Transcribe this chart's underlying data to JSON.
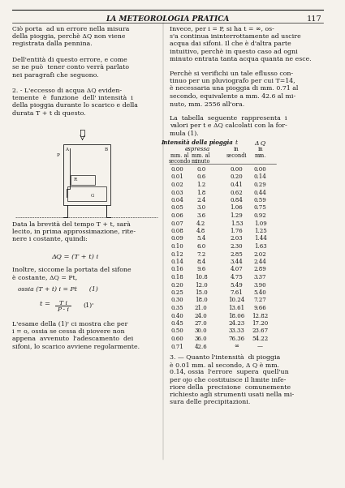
{
  "header_title": "LA METEOROLOGIA PRATICA",
  "page_number": "117",
  "bg_color": "#f5f2ec",
  "text_color": "#1a1a1a",
  "left_col": {
    "para1": "Ciò porta  ad un errore nella misura\ndella pioggia, perchè ΔQ non viene\nregistrata dalla pennina.",
    "para2": "Dell'entità di questo errore, e come\nse ne può  tener conto verrà parlato\nnei paragrafi che seguono.",
    "para3": "2. - L'eccesso di acqua ΔQ eviden-\ntemente  è  funzione  dell' intensità  i\ndella pioggia durante lo scarico e della\ndurata T + t di questo.",
    "para4": "Data la brevità del tempo T + t, sarà\nlecito, in prima approssimazione, rite-\nnere i costante, quindi:",
    "formula1": "ΔQ = (T + t) i",
    "para5": "Inoltre, siccome la portata del sifone\nè costante, ΔQ = Pt,",
    "formula2": "ossia (T + t) i = Pt      (1)",
    "formula3": "t = ———      (1)'",
    "formula3_frac": "T i",
    "formula3_denom": "P - i",
    "para6": "L'esame della (1)' ci mostra che per\ni = o, ossia se cessa di piovere non\nappena  avvenuto  l'adescamento  dei\nsifoni, lo scarico avviene regolarmente."
  },
  "right_col": {
    "para1": "Invece, per i = P, si ha t = ∞, os-\ns'a continua ininterrottamente ad uscire\nacqua dai sifoni. Il che è d'altra parte\nintuitivo, perchè in questo caso ad ogni\nminuto entrata tanta acqua quanta ne esce.",
    "para2": "Perchè si verifichi un tale eflusso con-\ntinuo per un pluviografo per cui T=14,\nè necessaria una pioggia di mm. 0.71 al\nsecondo, equivalente a mm. 42.6 al mi-\nnuto, mm. 2556 all'ora.",
    "para3": "La  tabella  seguente  rappresenta  i\nvalori per t e ΔQ calcolati con la for-\nmula (1).",
    "table_header1": "Intensità della pioggia",
    "table_header2": "espressa",
    "table_col3": "t",
    "table_col4": "Δ Q",
    "table_sub1": "in",
    "table_sub2": "in",
    "table_col1_label": "mm. al\nsecondo",
    "table_col2_label": "mm. al\nminuto",
    "table_col3_label": "secondi",
    "table_col4_label": "mm.",
    "table_data": [
      [
        "0.00",
        "0.0",
        "0.00",
        "0.00"
      ],
      [
        "0.01",
        "0.6",
        "0.20",
        "0.14"
      ],
      [
        "0.02",
        "1.2",
        "0.41",
        "0.29"
      ],
      [
        "0.03",
        "1.8",
        "0.62",
        "0.44"
      ],
      [
        "0.04",
        "2.4",
        "0.84",
        "0.59"
      ],
      [
        "0.05",
        "3.0",
        "1.06",
        "0.75"
      ],
      [
        "0.06",
        "3.6",
        "1.29",
        "0.92"
      ],
      [
        "0.07",
        "4.2",
        "1.53",
        "1.09"
      ],
      [
        "0.08",
        "4.8",
        "1.76",
        "1.25"
      ],
      [
        "0.09",
        "5.4",
        "2.03",
        "1.44"
      ],
      [
        "0.10",
        "6.0",
        "2.30",
        "1.63"
      ],
      [
        "0.12",
        "7.2",
        "2.85",
        "2.02"
      ],
      [
        "0.14",
        "8.4",
        "3.44",
        "2.44"
      ],
      [
        "0.16",
        "9.6",
        "4.07",
        "2.89"
      ],
      [
        "0.18",
        "10.8",
        "4.75",
        "3.37"
      ],
      [
        "0.20",
        "12.0",
        "5.49",
        "3.90"
      ],
      [
        "0.25",
        "15.0",
        "7.61",
        "5.40"
      ],
      [
        "0.30",
        "18.0",
        "10.24",
        "7.27"
      ],
      [
        "0.35",
        "21.0",
        "13.61",
        "9.66"
      ],
      [
        "0.40",
        "24.0",
        "18.06",
        "12.82"
      ],
      [
        "0.45",
        "27.0",
        "24.23",
        "17.20"
      ],
      [
        "0.50",
        "30.0",
        "33.33",
        "23.67"
      ],
      [
        "0.60",
        "36.0",
        "76.36",
        "54.22"
      ],
      [
        "0.71",
        "42.6",
        "∞",
        "—"
      ]
    ],
    "para4": "3. — Quanto l'intensità  di pioggia\nè 0.01 mm. al secondo, Δ Q è mm.\n0.14, ossia  l'errore  supera  quell'un\nper ojo che costituisce il limite infe-\nriore della  precisione  comunemente\nrichiesto agli strumenti usati nella mi-\nsura delle precipitazioni."
  }
}
